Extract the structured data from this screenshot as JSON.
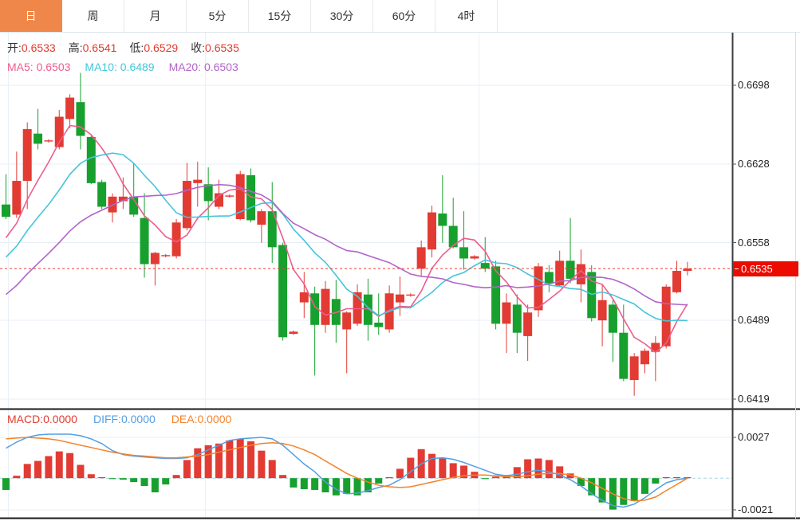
{
  "tabs": {
    "items": [
      {
        "label": "日",
        "active": true
      },
      {
        "label": "周",
        "active": false
      },
      {
        "label": "月",
        "active": false
      },
      {
        "label": "5分",
        "active": false
      },
      {
        "label": "15分",
        "active": false
      },
      {
        "label": "30分",
        "active": false
      },
      {
        "label": "60分",
        "active": false
      },
      {
        "label": "4时",
        "active": false
      }
    ]
  },
  "ohlc_legend": {
    "open_label": "开:",
    "open": "0.6533",
    "high_label": "高:",
    "high": "0.6541",
    "low_label": "低:",
    "low": "0.6529",
    "close_label": "收:",
    "close": "0.6535"
  },
  "ma_legend": {
    "ma5_label": "MA5:",
    "ma5": "0.6503",
    "ma10_label": "MA10:",
    "ma10": "0.6489",
    "ma20_label": "MA20:",
    "ma20": "0.6503"
  },
  "macd_legend": {
    "macd_label": "MACD:",
    "macd": "0.0000",
    "diff_label": "DIFF:",
    "diff": "0.0000",
    "dea_label": "DEA:",
    "dea": "0.0000"
  },
  "colors": {
    "up": "#e23b33",
    "down": "#17a02e",
    "ma5": "#ee5c8d",
    "ma10": "#45c5da",
    "ma20": "#b164c9",
    "diff": "#549ee3",
    "dea": "#f5822a",
    "accent_tab": "#f0874a",
    "price_badge_bg": "#ec0b00",
    "price_line": "#f43b30",
    "grid": "#e7eef5",
    "grid_vertical": "#eaf1f7",
    "macd_zero_line": "#a8d4e6",
    "axis_line": "#3c3c3c",
    "panel_divider": "#1a1a1a",
    "axis_text": "#222"
  },
  "chart_data": {
    "type": "candlestick",
    "panels": [
      "main",
      "macd"
    ],
    "grid": true,
    "legend_position": "top-left",
    "main": {
      "y_ticks": [
        0.6698,
        0.6628,
        0.6558,
        0.6489,
        0.6419
      ],
      "current_price": 0.6535,
      "candle_format": "[open, high, low, close]",
      "candles": [
        [
          0.6592,
          0.6619,
          0.6579,
          0.6581
        ],
        [
          0.6583,
          0.6639,
          0.658,
          0.6613
        ],
        [
          0.6613,
          0.6665,
          0.6588,
          0.6659
        ],
        [
          0.6655,
          0.6677,
          0.6641,
          0.6646
        ],
        [
          0.6648,
          0.665,
          0.6647,
          0.6649
        ],
        [
          0.6643,
          0.6676,
          0.6641,
          0.667
        ],
        [
          0.6668,
          0.669,
          0.666,
          0.6687
        ],
        [
          0.6683,
          0.6709,
          0.6641,
          0.6653
        ],
        [
          0.6652,
          0.6653,
          0.661,
          0.6611
        ],
        [
          0.6612,
          0.6614,
          0.6588,
          0.659
        ],
        [
          0.6585,
          0.6602,
          0.6576,
          0.6599
        ],
        [
          0.6595,
          0.6616,
          0.6588,
          0.6599
        ],
        [
          0.6599,
          0.6629,
          0.6581,
          0.6583
        ],
        [
          0.658,
          0.6602,
          0.6527,
          0.6539
        ],
        [
          0.6539,
          0.655,
          0.652,
          0.6549
        ],
        [
          0.6546,
          0.6548,
          0.6545,
          0.6547
        ],
        [
          0.6546,
          0.6579,
          0.6544,
          0.6576
        ],
        [
          0.6571,
          0.6629,
          0.6569,
          0.6613
        ],
        [
          0.6611,
          0.663,
          0.659,
          0.6614
        ],
        [
          0.661,
          0.6625,
          0.6578,
          0.6595
        ],
        [
          0.659,
          0.6614,
          0.6588,
          0.6602
        ],
        [
          0.6599,
          0.6601,
          0.6598,
          0.66
        ],
        [
          0.6579,
          0.6622,
          0.6578,
          0.6619
        ],
        [
          0.6618,
          0.6624,
          0.6576,
          0.6578
        ],
        [
          0.6574,
          0.6588,
          0.6558,
          0.6586
        ],
        [
          0.6586,
          0.6612,
          0.654,
          0.6554
        ],
        [
          0.6556,
          0.6558,
          0.6471,
          0.6474
        ],
        [
          0.6477,
          0.648,
          0.6476,
          0.6479
        ],
        [
          0.6505,
          0.6532,
          0.6491,
          0.6514
        ],
        [
          0.6513,
          0.6519,
          0.644,
          0.6485
        ],
        [
          0.6485,
          0.6524,
          0.6478,
          0.6517
        ],
        [
          0.6508,
          0.6525,
          0.6469,
          0.6485
        ],
        [
          0.6481,
          0.6497,
          0.6442,
          0.6496
        ],
        [
          0.6486,
          0.6521,
          0.6484,
          0.6514
        ],
        [
          0.6512,
          0.6526,
          0.6471,
          0.6485
        ],
        [
          0.6487,
          0.6513,
          0.6476,
          0.6483
        ],
        [
          0.6481,
          0.652,
          0.6478,
          0.6513
        ],
        [
          0.6505,
          0.6528,
          0.6493,
          0.6512
        ],
        [
          0.6511,
          0.6513,
          0.651,
          0.6512
        ],
        [
          0.6535,
          0.656,
          0.6528,
          0.6554
        ],
        [
          0.6552,
          0.6591,
          0.6545,
          0.6585
        ],
        [
          0.6584,
          0.6618,
          0.6558,
          0.6573
        ],
        [
          0.6573,
          0.6598,
          0.6553,
          0.6554
        ],
        [
          0.6554,
          0.6586,
          0.6534,
          0.6544
        ],
        [
          0.6544,
          0.6547,
          0.6543,
          0.6546
        ],
        [
          0.654,
          0.6563,
          0.6532,
          0.6535
        ],
        [
          0.6537,
          0.6542,
          0.6481,
          0.6486
        ],
        [
          0.6486,
          0.6513,
          0.646,
          0.6505
        ],
        [
          0.6503,
          0.6512,
          0.646,
          0.6478
        ],
        [
          0.6475,
          0.6503,
          0.6453,
          0.6496
        ],
        [
          0.6498,
          0.654,
          0.6492,
          0.6537
        ],
        [
          0.6532,
          0.6538,
          0.6514,
          0.6522
        ],
        [
          0.652,
          0.6551,
          0.6519,
          0.6542
        ],
        [
          0.6542,
          0.658,
          0.6522,
          0.6526
        ],
        [
          0.6521,
          0.6552,
          0.6505,
          0.6539
        ],
        [
          0.6532,
          0.6538,
          0.6488,
          0.6491
        ],
        [
          0.6489,
          0.6521,
          0.6466,
          0.6507
        ],
        [
          0.6503,
          0.6507,
          0.6452,
          0.6478
        ],
        [
          0.6478,
          0.6503,
          0.6435,
          0.6437
        ],
        [
          0.6436,
          0.646,
          0.6422,
          0.6457
        ],
        [
          0.645,
          0.6464,
          0.6442,
          0.6462
        ],
        [
          0.6461,
          0.6475,
          0.6435,
          0.6469
        ],
        [
          0.6466,
          0.6521,
          0.6464,
          0.6519
        ],
        [
          0.6514,
          0.6542,
          0.6513,
          0.6533
        ],
        [
          0.6533,
          0.6541,
          0.6529,
          0.6535
        ]
      ],
      "ma_periods": [
        5,
        10,
        20
      ],
      "ma_seed_closes": [
        0.6449,
        0.6456,
        0.6462,
        0.6469,
        0.6475,
        0.6482,
        0.6489,
        0.6495,
        0.6502,
        0.6508,
        0.6515,
        0.6521,
        0.6528,
        0.6535,
        0.6541,
        0.6548,
        0.6554,
        0.6561,
        0.6568
      ]
    },
    "macd": {
      "y_ticks": [
        0.0027,
        -0.0021
      ],
      "hist": [
        -0.00078,
        0.00016,
        0.00094,
        0.00114,
        0.00146,
        0.00177,
        0.00166,
        0.00088,
        0.00026,
        5e-05,
        -5e-05,
        -0.0001,
        -0.00026,
        -0.00052,
        -0.00094,
        -0.00042,
        0.00021,
        0.0012,
        0.00198,
        0.00218,
        0.00229,
        0.0025,
        0.0026,
        0.00244,
        0.00182,
        0.0012,
        0.00021,
        -0.00062,
        -0.00073,
        -0.00078,
        -0.00094,
        -0.00114,
        -0.00104,
        -0.00114,
        -0.00094,
        -0.00036,
        5e-05,
        0.00062,
        0.00135,
        0.00192,
        0.00161,
        0.0013,
        0.00099,
        0.00083,
        0.00042,
        -5e-05,
        0.0001,
        0.00021,
        0.00073,
        0.00125,
        0.0013,
        0.0012,
        0.00078,
        0.00031,
        -0.00052,
        -0.00114,
        -0.00161,
        -0.00208,
        -0.00177,
        -0.00151,
        -0.00104,
        -0.00036,
        5e-05,
        5e-05,
        0.0
      ],
      "diff": [
        0.00198,
        0.00239,
        0.0027,
        0.00286,
        0.00291,
        0.00291,
        0.00291,
        0.00281,
        0.0026,
        0.00229,
        0.00182,
        0.00156,
        0.00146,
        0.0014,
        0.00135,
        0.0013,
        0.0013,
        0.00135,
        0.00156,
        0.00187,
        0.00218,
        0.0025,
        0.0026,
        0.00265,
        0.0027,
        0.0026,
        0.00218,
        0.00156,
        0.00094,
        0.00042,
        -0.00026,
        -0.00073,
        -0.00104,
        -0.00099,
        -0.00083,
        -0.00062,
        -0.00047,
        -0.0001,
        0.00042,
        0.00094,
        0.0013,
        0.00135,
        0.00125,
        0.00104,
        0.00078,
        0.00052,
        0.00026,
        0.00016,
        0.00026,
        0.00042,
        0.00052,
        0.00042,
        0.00021,
        -0.0001,
        -0.00052,
        -0.00104,
        -0.00146,
        -0.00182,
        -0.00192,
        -0.00172,
        -0.0013,
        -0.00078,
        -0.00031,
        -0.0001,
        0.0
      ],
      "dea": [
        0.0026,
        0.00265,
        0.0027,
        0.00265,
        0.0026,
        0.0025,
        0.00234,
        0.00218,
        0.00203,
        0.00187,
        0.00172,
        0.00161,
        0.00151,
        0.00146,
        0.0014,
        0.00135,
        0.00135,
        0.0014,
        0.00146,
        0.00156,
        0.00172,
        0.00187,
        0.00203,
        0.00218,
        0.00229,
        0.00234,
        0.00229,
        0.00213,
        0.00187,
        0.00156,
        0.00114,
        0.00073,
        0.00031,
        0.0,
        -0.00026,
        -0.00047,
        -0.00057,
        -0.00062,
        -0.00057,
        -0.00042,
        -0.00026,
        -0.0001,
        5e-05,
        0.00016,
        0.00021,
        0.00021,
        0.00016,
        0.0001,
        0.0001,
        0.00016,
        0.00026,
        0.00031,
        0.00031,
        0.00021,
        0.0,
        -0.00031,
        -0.00068,
        -0.00104,
        -0.00135,
        -0.00151,
        -0.00146,
        -0.00125,
        -0.00083,
        -0.00042,
        0.0
      ]
    }
  }
}
